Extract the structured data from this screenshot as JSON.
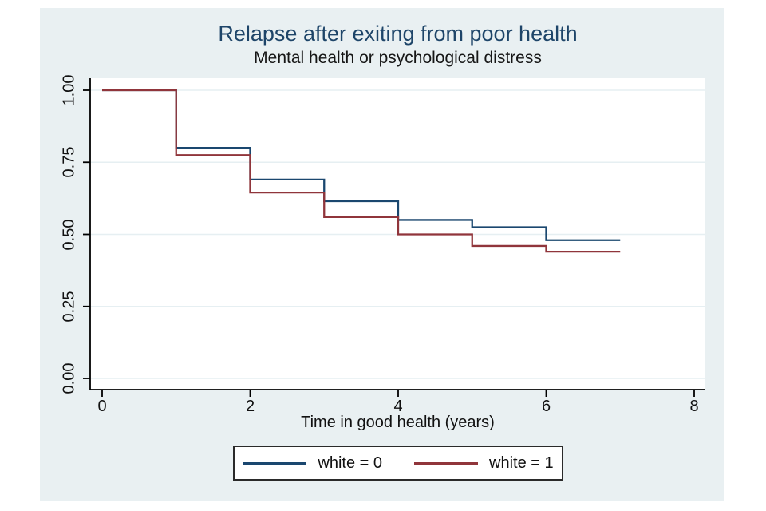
{
  "chart_data": {
    "type": "line",
    "subtype": "kaplan-meier-step",
    "title": "Relapse after exiting from poor health",
    "subtitle": "Mental health or psychological distress",
    "xlabel": "Time in good health (years)",
    "ylabel": "",
    "xlim": [
      0,
      8
    ],
    "ylim": [
      0,
      1
    ],
    "grid": true,
    "legend_position": "bottom-outside",
    "x_ticks": [
      0,
      2,
      4,
      6,
      8
    ],
    "x_tick_labels": [
      "0",
      "2",
      "4",
      "6",
      "8"
    ],
    "y_ticks": [
      0.0,
      0.25,
      0.5,
      0.75,
      1.0
    ],
    "y_tick_labels": [
      "0.00",
      "0.25",
      "0.50",
      "0.75",
      "1.00"
    ],
    "series": [
      {
        "name": "white = 0",
        "color": "#1a476f",
        "times": [
          0,
          1,
          2,
          3,
          4,
          5,
          6,
          7
        ],
        "survival": [
          1.0,
          0.8,
          0.69,
          0.615,
          0.55,
          0.525,
          0.48
        ]
      },
      {
        "name": "white = 1",
        "color": "#90353b",
        "times": [
          0,
          1,
          2,
          3,
          4,
          5,
          6,
          7
        ],
        "survival": [
          1.0,
          0.775,
          0.645,
          0.56,
          0.5,
          0.46,
          0.44
        ]
      }
    ]
  },
  "colors": {
    "panel_bg": "#e9f0f2",
    "plot_bg": "#ffffff",
    "grid": "#e6eff2",
    "axis": "#000000",
    "title": "#1e4569",
    "text": "#111111",
    "legend_border": "#2a2a2a"
  }
}
